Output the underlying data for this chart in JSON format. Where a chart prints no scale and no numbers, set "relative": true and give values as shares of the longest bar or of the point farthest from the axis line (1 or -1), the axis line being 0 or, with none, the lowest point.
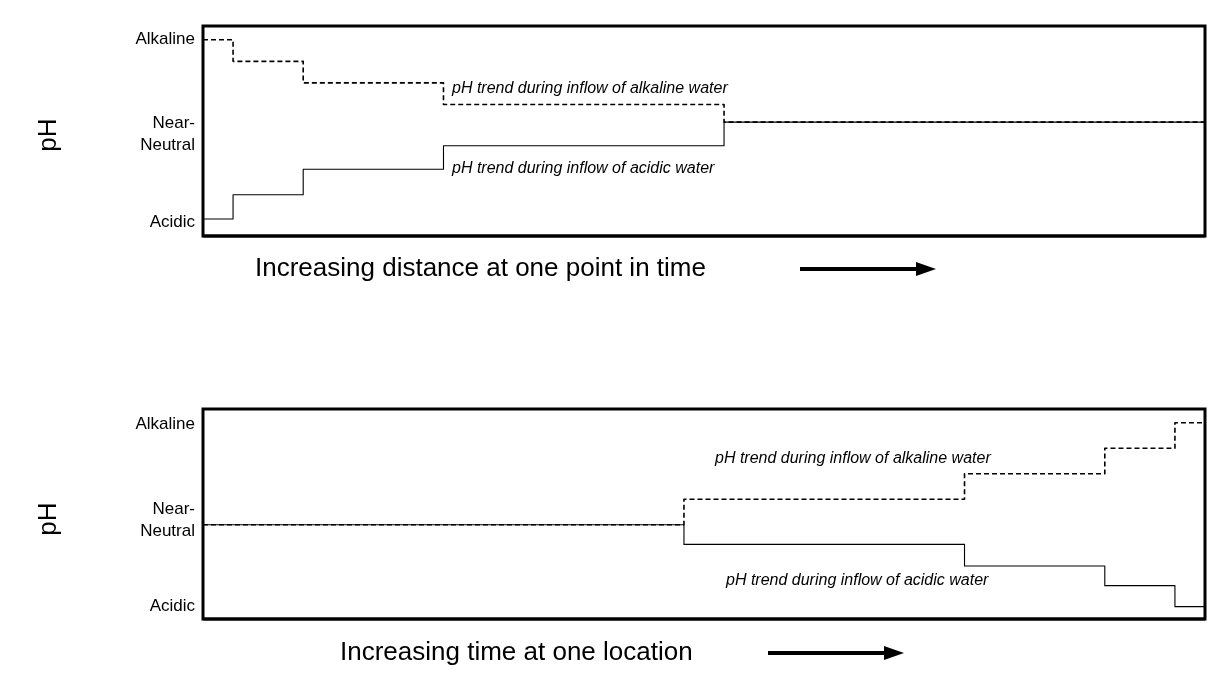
{
  "chart_data": [
    {
      "type": "step",
      "relative": true,
      "ylabel": "pH",
      "xlabel": "Increasing distance at one point in time",
      "categories": [
        null,
        null,
        null,
        null,
        null,
        null,
        null,
        null,
        null,
        null,
        null,
        null,
        null,
        null,
        null,
        null,
        null,
        null,
        null,
        null,
        null,
        null,
        null,
        null,
        null,
        null,
        null,
        null,
        null,
        null,
        null,
        null,
        null,
        null,
        null,
        null,
        null,
        null,
        null,
        null,
        null,
        null,
        null,
        null,
        null,
        null,
        null,
        null,
        null,
        null,
        null,
        null,
        null,
        null,
        null,
        null,
        null,
        null,
        null,
        null,
        null,
        null,
        null,
        null,
        null,
        null,
        null,
        null,
        null,
        null,
        null,
        null,
        null,
        null,
        null,
        null,
        null,
        null,
        null,
        null,
        null,
        null,
        null,
        null,
        null,
        null,
        null,
        null,
        null,
        null,
        null,
        null,
        null,
        null,
        null,
        null,
        null,
        null,
        null,
        null,
        null
      ],
      "series": [
        {
          "color": "#000000",
          "line_style": "dashed",
          "values": [
            1,
            1,
            1,
            0.89,
            0.89,
            0.89,
            0.89,
            0.89,
            0.89,
            0.89,
            0.78,
            0.78,
            0.78,
            0.78,
            0.78,
            0.78,
            0.78,
            0.78,
            0.78,
            0.78,
            0.78,
            0.78,
            0.78,
            0.78,
            0.67,
            0.67,
            0.67,
            0.67,
            0.67,
            0.67,
            0.67,
            0.67,
            0.67,
            0.67,
            0.67,
            0.67,
            0.67,
            0.67,
            0.67,
            0.67,
            0.67,
            0.67,
            0.67,
            0.67,
            0.67,
            0.67,
            0.67,
            0.67,
            0.67,
            0.67,
            0.67,
            0.67,
            0.58,
            0.58,
            0.58,
            0.58,
            0.58,
            0.58,
            0.58,
            0.58,
            0.58,
            0.58,
            0.58,
            0.58,
            0.58,
            0.58,
            0.58,
            0.58,
            0.58,
            0.58,
            0.58,
            0.58,
            0.58,
            0.58,
            0.58,
            0.58,
            0.58,
            0.58,
            0.58,
            0.58,
            0.58,
            0.58,
            0.58,
            0.58,
            0.58,
            0.58,
            0.58,
            0.58,
            0.58,
            0.58,
            0.58,
            0.58,
            0.58,
            0.58,
            0.58,
            0.58,
            0.58,
            0.58,
            0.58,
            0.58,
            0.58
          ]
        },
        {
          "color": "#000000",
          "line_style": "solid",
          "values": [
            0.087,
            0.087,
            0.087,
            0.21,
            0.21,
            0.21,
            0.21,
            0.21,
            0.21,
            0.21,
            0.34,
            0.34,
            0.34,
            0.34,
            0.34,
            0.34,
            0.34,
            0.34,
            0.34,
            0.34,
            0.34,
            0.34,
            0.34,
            0.34,
            0.46,
            0.46,
            0.46,
            0.46,
            0.46,
            0.46,
            0.46,
            0.46,
            0.46,
            0.46,
            0.46,
            0.46,
            0.46,
            0.46,
            0.46,
            0.46,
            0.46,
            0.46,
            0.46,
            0.46,
            0.46,
            0.46,
            0.46,
            0.46,
            0.46,
            0.46,
            0.46,
            0.46,
            0.58,
            0.58,
            0.58,
            0.58,
            0.58,
            0.58,
            0.58,
            0.58,
            0.58,
            0.58,
            0.58,
            0.58,
            0.58,
            0.58,
            0.58,
            0.58,
            0.58,
            0.58,
            0.58,
            0.58,
            0.58,
            0.58,
            0.58,
            0.58,
            0.58,
            0.58,
            0.58,
            0.58,
            0.58,
            0.58,
            0.58,
            0.58,
            0.58,
            0.58,
            0.58,
            0.58,
            0.58,
            0.58,
            0.58,
            0.58,
            0.58,
            0.58,
            0.58,
            0.58,
            0.58,
            0.58,
            0.58,
            0.58,
            0.58
          ]
        }
      ],
      "annotations": [
        "Alkaline",
        "Near-Neutral",
        "Acidic",
        "pH trend during inflow of alkaline water",
        "pH trend during inflow of acidic water"
      ]
    },
    {
      "type": "step",
      "relative": true,
      "ylabel": "pH",
      "xlabel": "Increasing time at one location",
      "categories": [
        null,
        null,
        null,
        null,
        null,
        null,
        null,
        null,
        null,
        null,
        null,
        null,
        null,
        null,
        null,
        null,
        null,
        null,
        null,
        null,
        null,
        null,
        null,
        null,
        null,
        null,
        null,
        null,
        null,
        null,
        null,
        null,
        null,
        null,
        null,
        null,
        null,
        null,
        null,
        null,
        null,
        null,
        null,
        null,
        null,
        null,
        null,
        null,
        null,
        null,
        null,
        null,
        null,
        null,
        null,
        null,
        null,
        null,
        null,
        null,
        null,
        null,
        null,
        null,
        null,
        null,
        null,
        null,
        null,
        null,
        null,
        null,
        null,
        null,
        null,
        null,
        null,
        null,
        null,
        null,
        null,
        null,
        null,
        null,
        null,
        null,
        null,
        null,
        null,
        null,
        null,
        null,
        null,
        null,
        null,
        null,
        null,
        null,
        null,
        null,
        null
      ],
      "series": [
        {
          "color": "#000000",
          "line_style": "dashed",
          "values": [
            0.48,
            0.48,
            0.48,
            0.48,
            0.48,
            0.48,
            0.48,
            0.48,
            0.48,
            0.48,
            0.48,
            0.48,
            0.48,
            0.48,
            0.48,
            0.48,
            0.48,
            0.48,
            0.48,
            0.48,
            0.48,
            0.48,
            0.48,
            0.48,
            0.48,
            0.48,
            0.48,
            0.48,
            0.48,
            0.48,
            0.48,
            0.48,
            0.48,
            0.48,
            0.48,
            0.48,
            0.48,
            0.48,
            0.48,
            0.48,
            0.48,
            0.48,
            0.48,
            0.48,
            0.48,
            0.48,
            0.48,
            0.48,
            0.61,
            0.61,
            0.61,
            0.61,
            0.61,
            0.61,
            0.61,
            0.61,
            0.61,
            0.61,
            0.61,
            0.61,
            0.61,
            0.61,
            0.61,
            0.61,
            0.61,
            0.61,
            0.61,
            0.61,
            0.61,
            0.61,
            0.61,
            0.61,
            0.61,
            0.61,
            0.61,
            0.61,
            0.74,
            0.74,
            0.74,
            0.74,
            0.74,
            0.74,
            0.74,
            0.74,
            0.74,
            0.74,
            0.74,
            0.74,
            0.74,
            0.74,
            0.87,
            0.87,
            0.87,
            0.87,
            0.87,
            0.87,
            0.87,
            1,
            1,
            1,
            1
          ]
        },
        {
          "color": "#000000",
          "line_style": "solid",
          "values": [
            0.48,
            0.48,
            0.48,
            0.48,
            0.48,
            0.48,
            0.48,
            0.48,
            0.48,
            0.48,
            0.48,
            0.48,
            0.48,
            0.48,
            0.48,
            0.48,
            0.48,
            0.48,
            0.48,
            0.48,
            0.48,
            0.48,
            0.48,
            0.48,
            0.48,
            0.48,
            0.48,
            0.48,
            0.48,
            0.48,
            0.48,
            0.48,
            0.48,
            0.48,
            0.48,
            0.48,
            0.48,
            0.48,
            0.48,
            0.48,
            0.48,
            0.48,
            0.48,
            0.48,
            0.48,
            0.48,
            0.48,
            0.48,
            0.38,
            0.38,
            0.38,
            0.38,
            0.38,
            0.38,
            0.38,
            0.38,
            0.38,
            0.38,
            0.38,
            0.38,
            0.38,
            0.38,
            0.38,
            0.38,
            0.38,
            0.38,
            0.38,
            0.38,
            0.38,
            0.38,
            0.38,
            0.38,
            0.38,
            0.38,
            0.38,
            0.38,
            0.27,
            0.27,
            0.27,
            0.27,
            0.27,
            0.27,
            0.27,
            0.27,
            0.27,
            0.27,
            0.27,
            0.27,
            0.27,
            0.27,
            0.17,
            0.17,
            0.17,
            0.17,
            0.17,
            0.17,
            0.17,
            0.063,
            0.063,
            0.063,
            0.063
          ]
        }
      ],
      "annotations": [
        "Alkaline",
        "Near-Neutral",
        "Acidic",
        "pH trend during inflow of alkaline water",
        "pH trend during inflow of acidic water"
      ]
    }
  ]
}
